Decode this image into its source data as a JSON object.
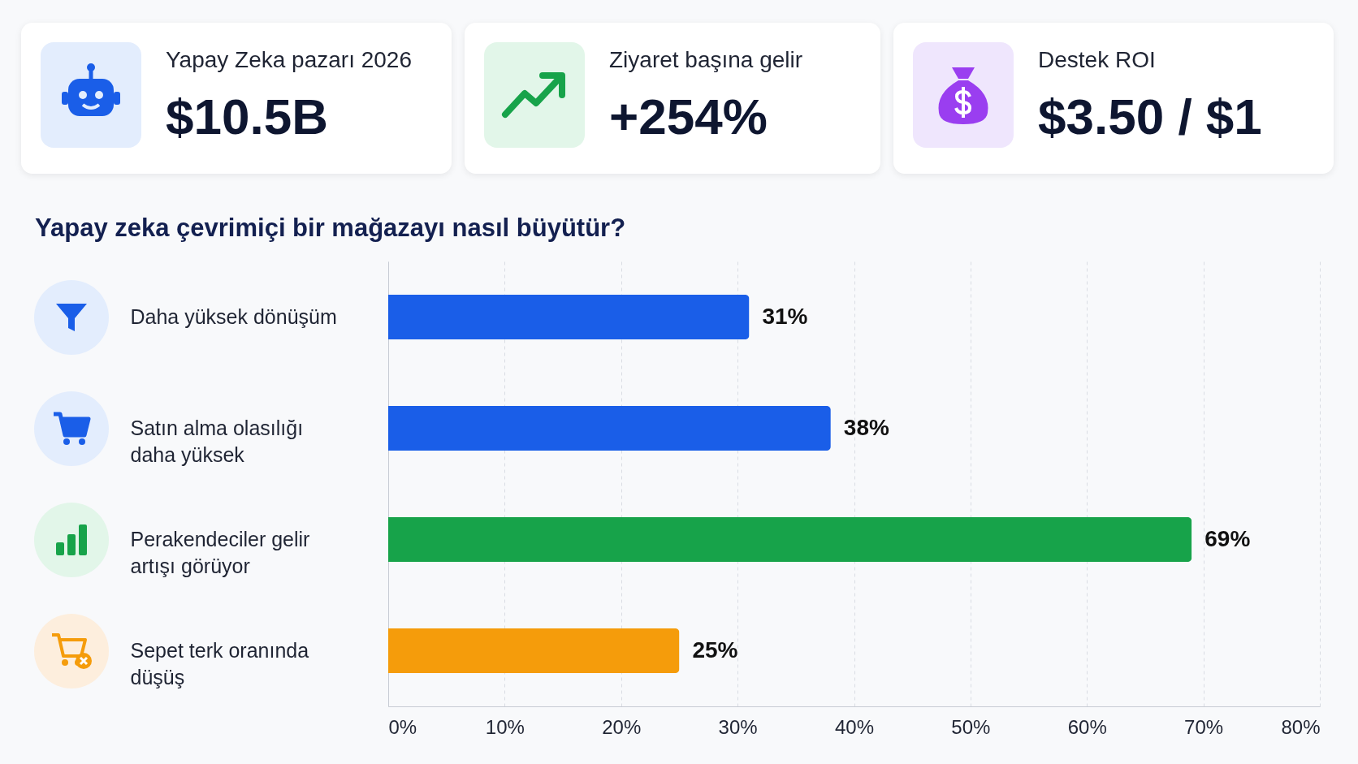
{
  "chart_data": [
    {
      "type": "other",
      "title": "Yapay Zeka pazarı 2026",
      "annotations": [
        "$10.5B"
      ]
    },
    {
      "type": "other",
      "title": "Ziyaret başına gelir",
      "annotations": [
        "+254%"
      ]
    },
    {
      "type": "other",
      "title": "Destek ROI",
      "annotations": [
        "$3.50 / $1"
      ]
    },
    {
      "type": "bar",
      "orientation": "horizontal",
      "title": "Yapay zeka çevrimiçi bir mağazayı nasıl büyütür?",
      "categories": [
        "Daha yüksek dönüşüm",
        "Satın alma olasılığı daha yüksek",
        "Perakendeciler gelir artışı görüyor",
        "Sepet terk oranında düşüş"
      ],
      "values": [
        31,
        38,
        69,
        25
      ],
      "colors": [
        "#1a5ee8",
        "#1a5ee8",
        "#17a34a",
        "#f59c0b"
      ],
      "xlim": [
        0,
        80
      ],
      "xticks": [
        {
          "value": 0,
          "label": "0%"
        },
        {
          "value": 10,
          "label": "10%"
        },
        {
          "value": 20,
          "label": "20%"
        },
        {
          "value": 30,
          "label": "30%"
        },
        {
          "value": 40,
          "label": "40%"
        },
        {
          "value": 50,
          "label": "50%"
        },
        {
          "value": 60,
          "label": "60%"
        },
        {
          "value": 70,
          "label": "70%"
        },
        {
          "value": 80,
          "label": "80%"
        }
      ],
      "value_labels": [
        "31%",
        "38%",
        "69%",
        "25%"
      ],
      "grid": "x"
    }
  ]
}
